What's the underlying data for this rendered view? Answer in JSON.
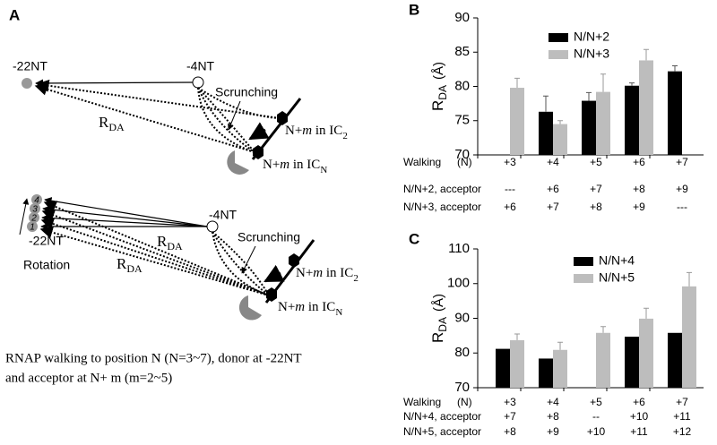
{
  "panel_a": {
    "label": "A",
    "top": {
      "far": "-22NT",
      "near": "-4NT",
      "scrunch": "Scrunching",
      "r": "R",
      "r_sub": "DA",
      "ic2": [
        "N+",
        "m",
        " in IC",
        "2"
      ],
      "icn": [
        "N+",
        "m",
        " in IC",
        "N"
      ]
    },
    "bottom": {
      "far": "-22NT",
      "near": "-4NT",
      "scrunch": "Scrunching",
      "rotation": "Rotation",
      "r": "R",
      "r_sub": "DA",
      "positions": [
        "1",
        "2",
        "3",
        "4"
      ],
      "ic2": [
        "N+",
        "m",
        " in IC",
        "2"
      ],
      "icn": [
        "N+",
        "m",
        " in IC",
        "N"
      ]
    },
    "caption": [
      "RNAP walking to position N (N=3~7), donor at -22NT",
      "and acceptor at N+ m (m=2~5)"
    ]
  },
  "chart_data": [
    {
      "type": "bar",
      "panel": "B",
      "ylabel": "R",
      "ylabel_sub": "DA",
      "ylabel_unit": "(Å)",
      "ylim": [
        70,
        90
      ],
      "yticks": [
        70,
        75,
        80,
        85,
        90
      ],
      "x_label": "Walking",
      "x_label_unit": "(N)",
      "categories": [
        "+3",
        "+4",
        "+5",
        "+6",
        "+7"
      ],
      "series": [
        {
          "name": "N/N+2",
          "color": "#000000",
          "values": [
            null,
            76.3,
            77.9,
            80.1,
            82.2
          ],
          "errors": [
            null,
            2.3,
            1.2,
            0.4,
            0.8
          ]
        },
        {
          "name": "N/N+3",
          "color": "#bdbdbd",
          "values": [
            79.8,
            74.5,
            79.2,
            83.8,
            null
          ],
          "errors": [
            1.4,
            0.5,
            2.6,
            1.6,
            null
          ]
        }
      ],
      "rows": [
        {
          "label": "N/N+2, acceptor",
          "values": [
            "---",
            "+6",
            "+7",
            "+8",
            "+9"
          ]
        },
        {
          "label": "N/N+3, acceptor",
          "values": [
            "+6",
            "+7",
            "+8",
            "+9",
            "---"
          ]
        }
      ]
    },
    {
      "type": "bar",
      "panel": "C",
      "ylabel": "R",
      "ylabel_sub": "DA",
      "ylabel_unit": "(Å)",
      "ylim": [
        70,
        110
      ],
      "yticks": [
        70,
        80,
        90,
        100,
        110
      ],
      "x_label": "Walking",
      "x_label_unit": "(N)",
      "categories": [
        "+3",
        "+4",
        "+5",
        "+6",
        "+7"
      ],
      "series": [
        {
          "name": "N/N+4",
          "color": "#000000",
          "values": [
            81.2,
            78.4,
            null,
            84.7,
            85.8
          ]
        },
        {
          "name": "N/N+5",
          "color": "#bdbdbd",
          "values": [
            83.7,
            80.9,
            85.8,
            89.9,
            99.2
          ],
          "errors": [
            1.8,
            2.2,
            1.8,
            3.0,
            4.0
          ]
        }
      ],
      "rows": [
        {
          "label": "N/N+4, acceptor",
          "values": [
            "+7",
            "+8",
            "--",
            "+10",
            "+11"
          ]
        },
        {
          "label": "N/N+5, acceptor",
          "values": [
            "+8",
            "+9",
            "+10",
            "+11",
            "+12"
          ]
        }
      ]
    }
  ]
}
